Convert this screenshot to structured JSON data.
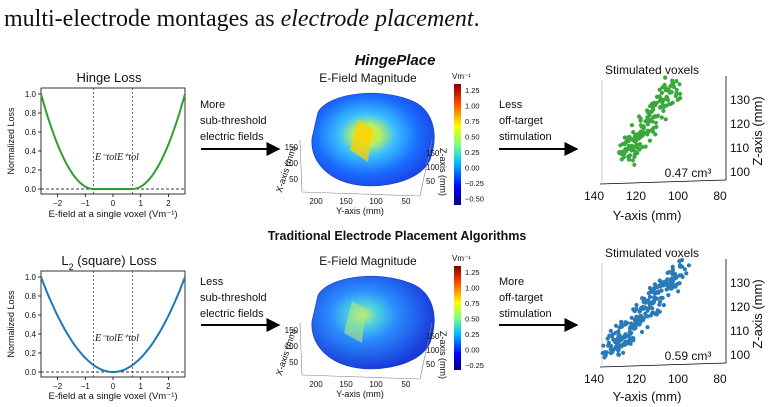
{
  "intro": {
    "text_plain": "multi-electrode montages as ",
    "text_italic": "electrode placement",
    "text_end": "."
  },
  "titles": {
    "hingeplace": "HingePlace",
    "traditional": "Traditional Electrode Placement Algorithms"
  },
  "rows": [
    {
      "loss_title": "Hinge Loss",
      "loss_title_sub": "",
      "loss_title_rest": "",
      "ylabel": "Normalized Loss",
      "xlabel": "E-field at a single voxel (Vm⁻¹)",
      "xticks": [
        "−2",
        "−1",
        "0",
        "1",
        "2"
      ],
      "yticks": [
        "0.0",
        "0.2",
        "0.4",
        "0.6",
        "0.8",
        "1.0"
      ],
      "etol_minus": "E⁻tol",
      "etol_plus": "E⁺tol",
      "left_arrow_text": [
        "More",
        "sub-threshold",
        "electric fields"
      ],
      "field_title": "E-Field Magnitude",
      "colorbar_unit": "Vm⁻¹",
      "colorbar_ticks": [
        "1.25",
        "1.00",
        "0.75",
        "0.50",
        "0.25",
        "0.00",
        "−0.25",
        "−0.50"
      ],
      "brain_xaxis": "Y-axis (mm)",
      "brain_yaxis": "X-axis (mm)",
      "brain_zaxis": "Z-axis (mm)",
      "brain_xticks": [
        "200",
        "150",
        "100",
        "50"
      ],
      "brain_yticks": [
        "150",
        "100",
        "50"
      ],
      "brain_zticks": [
        "150",
        "100",
        "50"
      ],
      "right_arrow_text": [
        "Less",
        "off-target",
        "stimulation"
      ],
      "voxels_title": "Stimulated voxels",
      "voxel_volume": "0.47 cm³",
      "voxel_xaxis": "Y-axis (mm)",
      "voxel_zaxis": "Z-axis (mm)",
      "voxel_xticks": [
        "140",
        "120",
        "100",
        "80"
      ],
      "voxel_zticks": [
        "130",
        "120",
        "110",
        "100"
      ]
    },
    {
      "loss_title": "L",
      "loss_title_sub": "2",
      "loss_title_rest": " (square) Loss",
      "ylabel": "Normalized Loss",
      "xlabel": "E-field at a single voxel (Vm⁻¹)",
      "xticks": [
        "−2",
        "−1",
        "0",
        "1",
        "2"
      ],
      "yticks": [
        "0.0",
        "0.2",
        "0.4",
        "0.6",
        "0.8",
        "1.0"
      ],
      "etol_minus": "E⁻tol",
      "etol_plus": "E⁺tol",
      "left_arrow_text": [
        "Less",
        "sub-threshold",
        "electric fields"
      ],
      "field_title": "E-Field Magnitude",
      "colorbar_unit": "Vm⁻¹",
      "colorbar_ticks": [
        "1.25",
        "1.00",
        "0.75",
        "0.50",
        "0.25",
        "0.00",
        "−0.25"
      ],
      "brain_xaxis": "Y-axis (mm)",
      "brain_yaxis": "X-axis (mm)",
      "brain_zaxis": "Z-axis (mm)",
      "brain_xticks": [
        "200",
        "150",
        "100",
        "50"
      ],
      "brain_yticks": [
        "150",
        "100",
        "50"
      ],
      "brain_zticks": [
        "150",
        "100",
        "50"
      ],
      "right_arrow_text": [
        "More",
        "off-target",
        "stimulation"
      ],
      "voxels_title": "Stimulated voxels",
      "voxel_volume": "0.59 cm³",
      "voxel_xaxis": "Y-axis (mm)",
      "voxel_zaxis": "Z-axis (mm)",
      "voxel_xticks": [
        "140",
        "120",
        "100",
        "80"
      ],
      "voxel_zticks": [
        "130",
        "120",
        "110",
        "100"
      ]
    }
  ],
  "colors": {
    "hinge": "#2ca02c",
    "square": "#1f77b4",
    "voxel_top": "#3aa83a",
    "voxel_bottom": "#2a7ab8"
  },
  "chart_data": [
    {
      "type": "line",
      "title": "Hinge Loss",
      "xlabel": "E-field at a single voxel (Vm⁻¹)",
      "ylabel": "Normalized Loss",
      "xlim": [
        -2.6,
        2.6
      ],
      "ylim": [
        0,
        1.0
      ],
      "tolerance": [
        -0.7,
        0.7
      ],
      "form": "hinge-squared"
    },
    {
      "type": "line",
      "title": "L2 (square) Loss",
      "xlabel": "E-field at a single voxel (Vm⁻¹)",
      "ylabel": "Normalized Loss",
      "xlim": [
        -2.6,
        2.6
      ],
      "ylim": [
        0,
        1.0
      ],
      "tolerance": [
        -0.7,
        0.7
      ],
      "form": "square"
    }
  ]
}
